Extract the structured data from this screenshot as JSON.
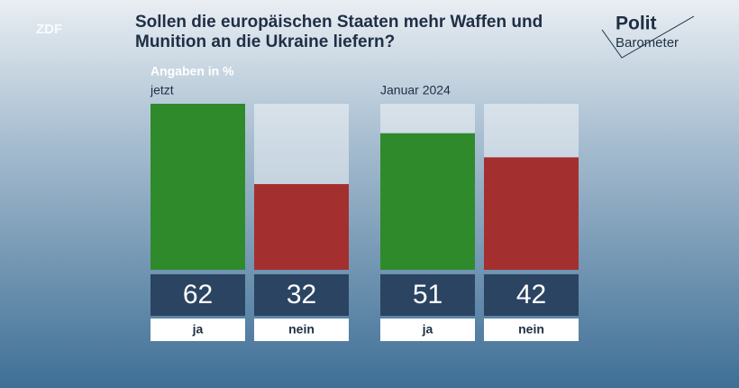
{
  "branding": {
    "broadcaster": "ZDF",
    "program_top": "Polit",
    "program_bottom": "Barometer"
  },
  "chart_data": [
    {
      "type": "bar",
      "title": "Sollen die europäischen Staaten mehr Waffen und Munition an die Ukraine liefern?",
      "note": "Angaben in %",
      "subtitle": "jetzt",
      "categories": [
        "ja",
        "nein"
      ],
      "values": [
        62,
        32
      ],
      "colors": [
        "#2f8a2c",
        "#a3302f"
      ],
      "ylim": [
        0,
        62
      ]
    },
    {
      "type": "bar",
      "subtitle": "Januar 2024",
      "categories": [
        "ja",
        "nein"
      ],
      "values": [
        51,
        42
      ],
      "colors": [
        "#2f8a2c",
        "#a3302f"
      ],
      "ylim": [
        0,
        62
      ]
    }
  ]
}
